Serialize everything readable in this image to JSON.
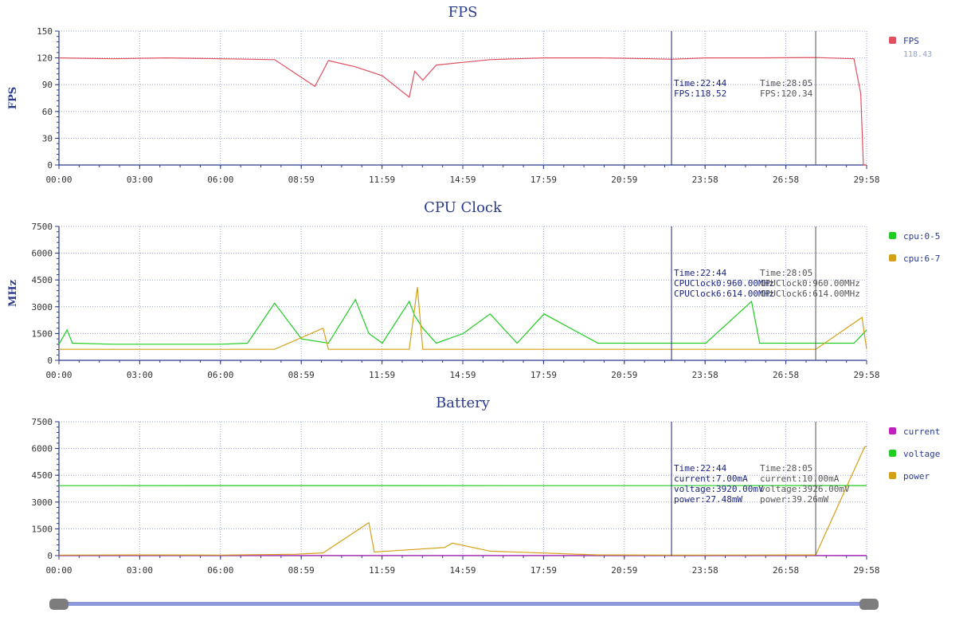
{
  "charts": [
    {
      "id": "fps",
      "title": "FPS",
      "ylabel": "FPS",
      "ylim": [
        0,
        150
      ],
      "yticks": [
        0,
        30,
        60,
        90,
        120,
        150
      ],
      "legend": [
        {
          "name": "FPS",
          "color": "#e05060",
          "value": "118.43"
        }
      ],
      "cursors": [
        {
          "lines": [
            "Time:22:44",
            "FPS:118.52"
          ],
          "color": "#1a237e"
        },
        {
          "lines": [
            "Time:28:05",
            "FPS:120.34"
          ],
          "color": "#555555"
        }
      ]
    },
    {
      "id": "cpu",
      "title": "CPU Clock",
      "ylabel": "MHz",
      "ylim": [
        0,
        7500
      ],
      "yticks": [
        0,
        1500,
        3000,
        4500,
        6000,
        7500
      ],
      "legend": [
        {
          "name": "cpu:0-5",
          "color": "#22cc22"
        },
        {
          "name": "cpu:6-7",
          "color": "#d4a017"
        }
      ],
      "cursors": [
        {
          "lines": [
            "Time:22:44",
            "CPUClock0:960.00MHz",
            "CPUClock6:614.00MHz"
          ],
          "color": "#1a237e"
        },
        {
          "lines": [
            "Time:28:05",
            "CPUClock0:960.00MHz",
            "CPUClock6:614.00MHz"
          ],
          "color": "#555555"
        }
      ]
    },
    {
      "id": "battery",
      "title": "Battery",
      "ylabel": "",
      "ylim": [
        0,
        7500
      ],
      "yticks": [
        0,
        1500,
        3000,
        4500,
        6000,
        7500
      ],
      "legend": [
        {
          "name": "current",
          "color": "#c020c0"
        },
        {
          "name": "voltage",
          "color": "#22cc22"
        },
        {
          "name": "power",
          "color": "#d4a017"
        }
      ],
      "cursors": [
        {
          "lines": [
            "Time:22:44",
            "current:7.00mA",
            "voltage:3920.00mV",
            "power:27.48mW"
          ],
          "color": "#1a237e"
        },
        {
          "lines": [
            "Time:28:05",
            "current:10.00mA",
            "voltage:3926.00mV",
            "power:39.26mW"
          ],
          "color": "#555555"
        }
      ]
    }
  ],
  "xticks": [
    "00:00",
    "03:00",
    "06:00",
    "08:59",
    "11:59",
    "14:59",
    "17:59",
    "20:59",
    "23:58",
    "26:58",
    "29:58"
  ],
  "cursor_times_min": [
    22.73,
    28.08
  ],
  "x_range_min": [
    0,
    29.97
  ],
  "chart_data": [
    {
      "type": "line",
      "title": "FPS",
      "ylabel": "FPS",
      "ylim": [
        0,
        150
      ],
      "x_unit": "minutes",
      "series": [
        {
          "name": "FPS",
          "color": "#e05060",
          "x": [
            0,
            2,
            4,
            6,
            8,
            9.5,
            10,
            11,
            12,
            13,
            13.2,
            13.5,
            14,
            15,
            16,
            17,
            18,
            20,
            22,
            22.73,
            24,
            26,
            28.08,
            29.5,
            29.75,
            29.85,
            29.97
          ],
          "y": [
            120,
            119,
            120,
            119,
            118,
            88,
            117,
            110,
            100,
            76,
            105,
            95,
            112,
            115,
            118,
            119,
            120,
            120,
            119,
            118.52,
            120,
            120,
            120.34,
            119,
            80,
            0,
            0
          ]
        }
      ]
    },
    {
      "type": "line",
      "title": "CPU Clock",
      "ylabel": "MHz",
      "ylim": [
        0,
        7500
      ],
      "x_unit": "minutes",
      "series": [
        {
          "name": "cpu:0-5",
          "color": "#22cc22",
          "x": [
            0,
            0.3,
            0.5,
            2,
            4,
            6,
            7,
            8,
            9,
            10,
            11,
            11.5,
            12,
            13,
            13.2,
            13.5,
            14,
            15,
            16,
            17,
            18,
            20,
            22.73,
            24,
            25.7,
            26,
            28.08,
            29.5,
            29.97
          ],
          "y": [
            900,
            1700,
            960,
            900,
            900,
            900,
            960,
            3200,
            1200,
            960,
            3400,
            1500,
            960,
            3300,
            2500,
            1800,
            960,
            1500,
            2600,
            960,
            2600,
            960,
            960,
            960,
            3300,
            960,
            960,
            960,
            1700
          ]
        },
        {
          "name": "cpu:6-7",
          "color": "#d4a017",
          "x": [
            0,
            2,
            4,
            6,
            8,
            9.8,
            10,
            12,
            13,
            13.3,
            13.5,
            15,
            18,
            22.73,
            26,
            28.08,
            29.8,
            29.97
          ],
          "y": [
            614,
            614,
            614,
            614,
            614,
            1800,
            614,
            614,
            614,
            4100,
            614,
            614,
            614,
            614,
            614,
            614,
            2400,
            614
          ]
        }
      ]
    },
    {
      "type": "line",
      "title": "Battery",
      "ylim": [
        0,
        7500
      ],
      "x_unit": "minutes",
      "series": [
        {
          "name": "current",
          "color": "#c020c0",
          "x": [
            0,
            10,
            20,
            22.73,
            28.08,
            29.97
          ],
          "y": [
            10,
            8,
            9,
            7,
            10,
            12
          ]
        },
        {
          "name": "voltage",
          "color": "#22cc22",
          "x": [
            0,
            10,
            20,
            22.73,
            28.08,
            29.97
          ],
          "y": [
            3920,
            3922,
            3921,
            3920,
            3926,
            3925
          ]
        },
        {
          "name": "power",
          "color": "#d4a017",
          "x": [
            0,
            3,
            6,
            8.8,
            9.8,
            11.5,
            11.7,
            13.2,
            14.3,
            14.6,
            16,
            20,
            22.73,
            28.08,
            29.9,
            29.97
          ],
          "y": [
            30,
            40,
            30,
            80,
            150,
            1850,
            200,
            350,
            450,
            700,
            250,
            40,
            27.48,
            39.26,
            6100,
            6100
          ]
        }
      ]
    }
  ]
}
